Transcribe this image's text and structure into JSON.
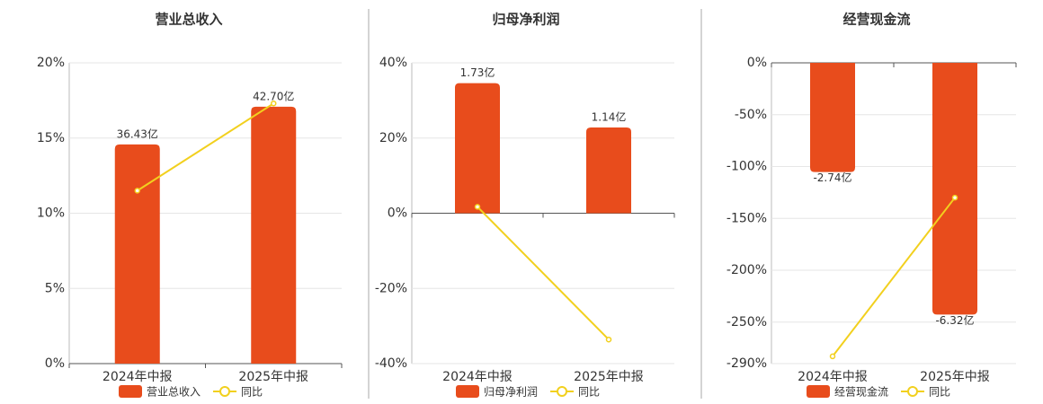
{
  "chart_data": [
    {
      "type": "bar",
      "title": "营业总收入",
      "categories": [
        "2024年中报",
        "2025年中报"
      ],
      "series": [
        {
          "name": "营业总收入",
          "color": "#e84c1c",
          "values": [
            36.43,
            42.7
          ],
          "value_labels": [
            "36.43亿",
            "42.70亿"
          ],
          "axis": "y2"
        },
        {
          "name": "同比",
          "color": "#f2d01e",
          "type": "line",
          "values": [
            11.5,
            17.3
          ]
        }
      ],
      "ylim": [
        0,
        20
      ],
      "yticks": [
        {
          "value": 0,
          "label": "0%"
        },
        {
          "value": 5,
          "label": "5%"
        },
        {
          "value": 10,
          "label": "10%"
        },
        {
          "value": 15,
          "label": "15%"
        },
        {
          "value": 20,
          "label": "20%"
        }
      ],
      "y2lim": [
        0,
        50
      ],
      "grid": true
    },
    {
      "type": "bar",
      "title": "归母净利润",
      "categories": [
        "2024年中报",
        "2025年中报"
      ],
      "series": [
        {
          "name": "归母净利润",
          "color": "#e84c1c",
          "values": [
            1.73,
            1.14
          ],
          "value_labels": [
            "1.73亿",
            "1.14亿"
          ],
          "axis": "y2"
        },
        {
          "name": "同比",
          "color": "#f2d01e",
          "type": "line",
          "values": [
            1.7,
            -33.6
          ]
        }
      ],
      "ylim": [
        -40,
        40
      ],
      "yticks": [
        {
          "value": -40,
          "label": "-40%"
        },
        {
          "value": -20,
          "label": "-20%"
        },
        {
          "value": 0,
          "label": "0%"
        },
        {
          "value": 20,
          "label": "20%"
        },
        {
          "value": 40,
          "label": "40%"
        }
      ],
      "y2lim": [
        -2,
        2
      ],
      "grid": true
    },
    {
      "type": "bar",
      "title": "经营现金流",
      "categories": [
        "2024年中报",
        "2025年中报"
      ],
      "series": [
        {
          "name": "经营现金流",
          "color": "#e84c1c",
          "values": [
            -2.74,
            -6.32
          ],
          "value_labels": [
            "-2.74亿",
            "-6.32亿"
          ],
          "axis": "y2"
        },
        {
          "name": "同比",
          "color": "#f2d01e",
          "type": "line",
          "values": [
            -283,
            -130
          ]
        }
      ],
      "ylim": [
        -290,
        0
      ],
      "yticks": [
        {
          "value": -290,
          "label": "-290%"
        },
        {
          "value": -250,
          "label": "-250%"
        },
        {
          "value": -200,
          "label": "-200%"
        },
        {
          "value": -150,
          "label": "-150%"
        },
        {
          "value": -100,
          "label": "-100%"
        },
        {
          "value": -50,
          "label": "-50%"
        },
        {
          "value": 0,
          "label": "0%"
        }
      ],
      "y2lim": [
        -7.55,
        0
      ],
      "grid": true
    }
  ]
}
